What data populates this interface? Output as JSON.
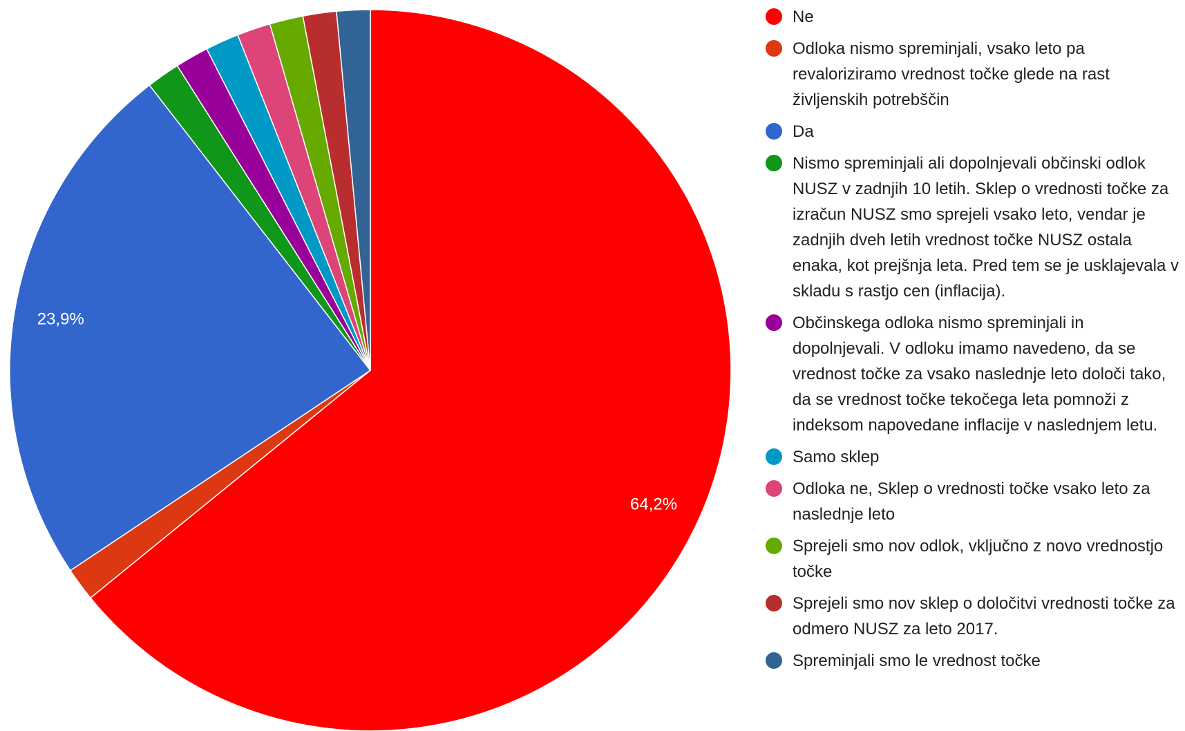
{
  "chart_data": {
    "type": "pie",
    "categories": [
      "Ne",
      "Odloka nismo spreminjali, vsako leto pa revaloriziramo vrednost točke glede na rast življenskih potrebščin",
      "Da",
      "Nismo spreminjali ali dopolnjevali občinski odlok NUSZ v zadnjih 10 letih. Sklep o vrednosti točke za izračun NUSZ smo sprejeli vsako leto, vendar je zadnjih dveh letih vrednost točke NUSZ ostala enaka, kot prejšnja leta. Pred tem se je usklajevala v skladu s rastjo cen (inflacija).",
      "Občinskega odloka nismo spreminjali in dopolnjevali. V odloku imamo navedeno, da se vrednost točke za vsako naslednje leto določi tako, da se vrednost točke tekočega leta pomnoži z indeksom napovedane inflacije v naslednjem letu.",
      "Samo sklep",
      "Odloka ne, Sklep o vrednosti točke vsako leto za naslednje leto",
      "Sprejeli smo nov odlok, vključno z novo vrednostjo točke",
      "Sprejeli smo nov sklep o določitvi vrednosti točke za odmero NUSZ za leto 2017.",
      "Spreminjali smo le vrednost točke"
    ],
    "values": [
      64.2,
      1.5,
      23.9,
      1.5,
      1.5,
      1.5,
      1.5,
      1.5,
      1.5,
      1.5
    ],
    "value_labels": [
      "64,2%",
      null,
      "23,9%",
      null,
      null,
      null,
      null,
      null,
      null,
      null
    ],
    "colors": [
      "#ff0000",
      "#dc3912",
      "#3366cc",
      "#109618",
      "#990099",
      "#0099c6",
      "#dd4477",
      "#66aa00",
      "#b82e2e",
      "#316395"
    ],
    "legend": "right"
  }
}
